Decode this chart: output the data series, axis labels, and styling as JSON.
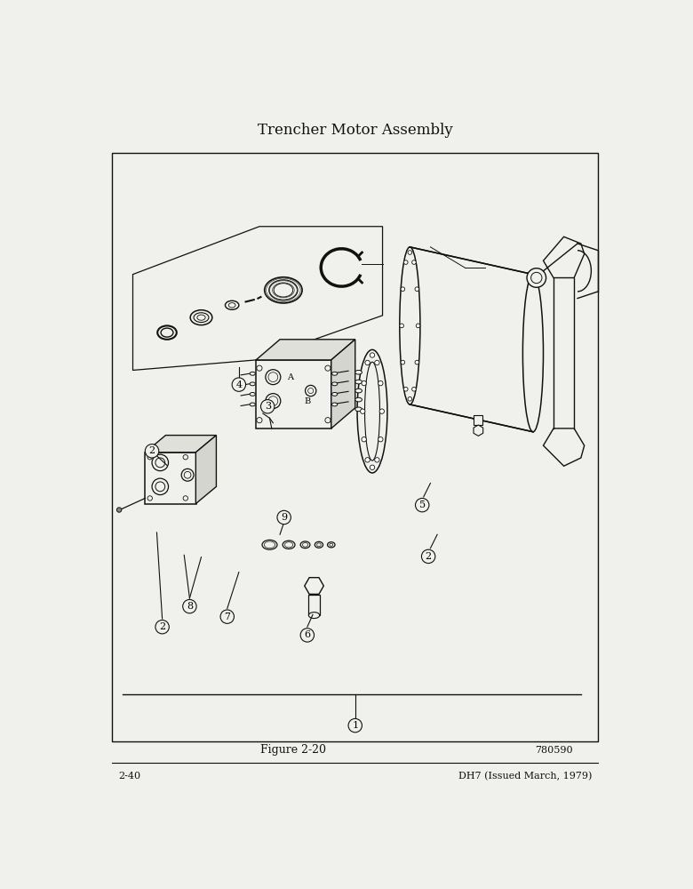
{
  "title": "Trencher Motor Assembly",
  "figure_label": "Figure 2-20",
  "part_number": "780590",
  "page_left": "2-40",
  "page_right": "DH7 (Issued March, 1979)",
  "bg": "#f0f0ec",
  "lc": "#111111",
  "fig_width": 7.8,
  "fig_height": 10.0
}
